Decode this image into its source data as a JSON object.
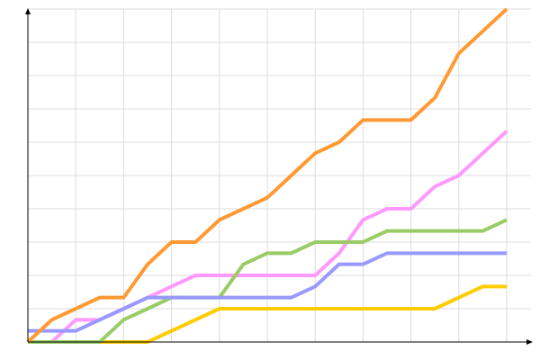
{
  "chart_data": {
    "type": "line",
    "title": "",
    "xlabel": "",
    "ylabel": "",
    "x": [
      0,
      1,
      2,
      3,
      4,
      5,
      6,
      7,
      8,
      9,
      10,
      11,
      12,
      13,
      14,
      15,
      16,
      17,
      18,
      19,
      20
    ],
    "xlim": [
      0,
      20
    ],
    "ylim": [
      0,
      30
    ],
    "grid": true,
    "legend": "none",
    "series": [
      {
        "color": "#ffcc00",
        "values": [
          0,
          0,
          0,
          0,
          0,
          0,
          1,
          2,
          3,
          3,
          3,
          3,
          3,
          3,
          3,
          3,
          3,
          3,
          4,
          5,
          5
        ]
      },
      {
        "color": "#ff99ff",
        "values": [
          0,
          0,
          2,
          2,
          3,
          4,
          5,
          6,
          6,
          6,
          6,
          6,
          6,
          8,
          11,
          12,
          12,
          14,
          15,
          17,
          19
        ]
      },
      {
        "color": "#99cc66",
        "values": [
          0,
          0,
          0,
          0,
          2,
          3,
          4,
          4,
          4,
          7,
          8,
          8,
          9,
          9,
          9,
          10,
          10,
          10,
          10,
          10,
          11
        ]
      },
      {
        "color": "#9999ff",
        "values": [
          1,
          1,
          1,
          2,
          3,
          4,
          4,
          4,
          4,
          4,
          4,
          4,
          5,
          7,
          7,
          8,
          8,
          8,
          8,
          8,
          8
        ]
      },
      {
        "color": "#ff9933",
        "values": [
          0,
          2,
          3,
          4,
          4,
          7,
          9,
          9,
          11,
          12,
          13,
          15,
          17,
          18,
          20,
          20,
          20,
          22,
          26,
          28,
          30
        ]
      }
    ]
  }
}
